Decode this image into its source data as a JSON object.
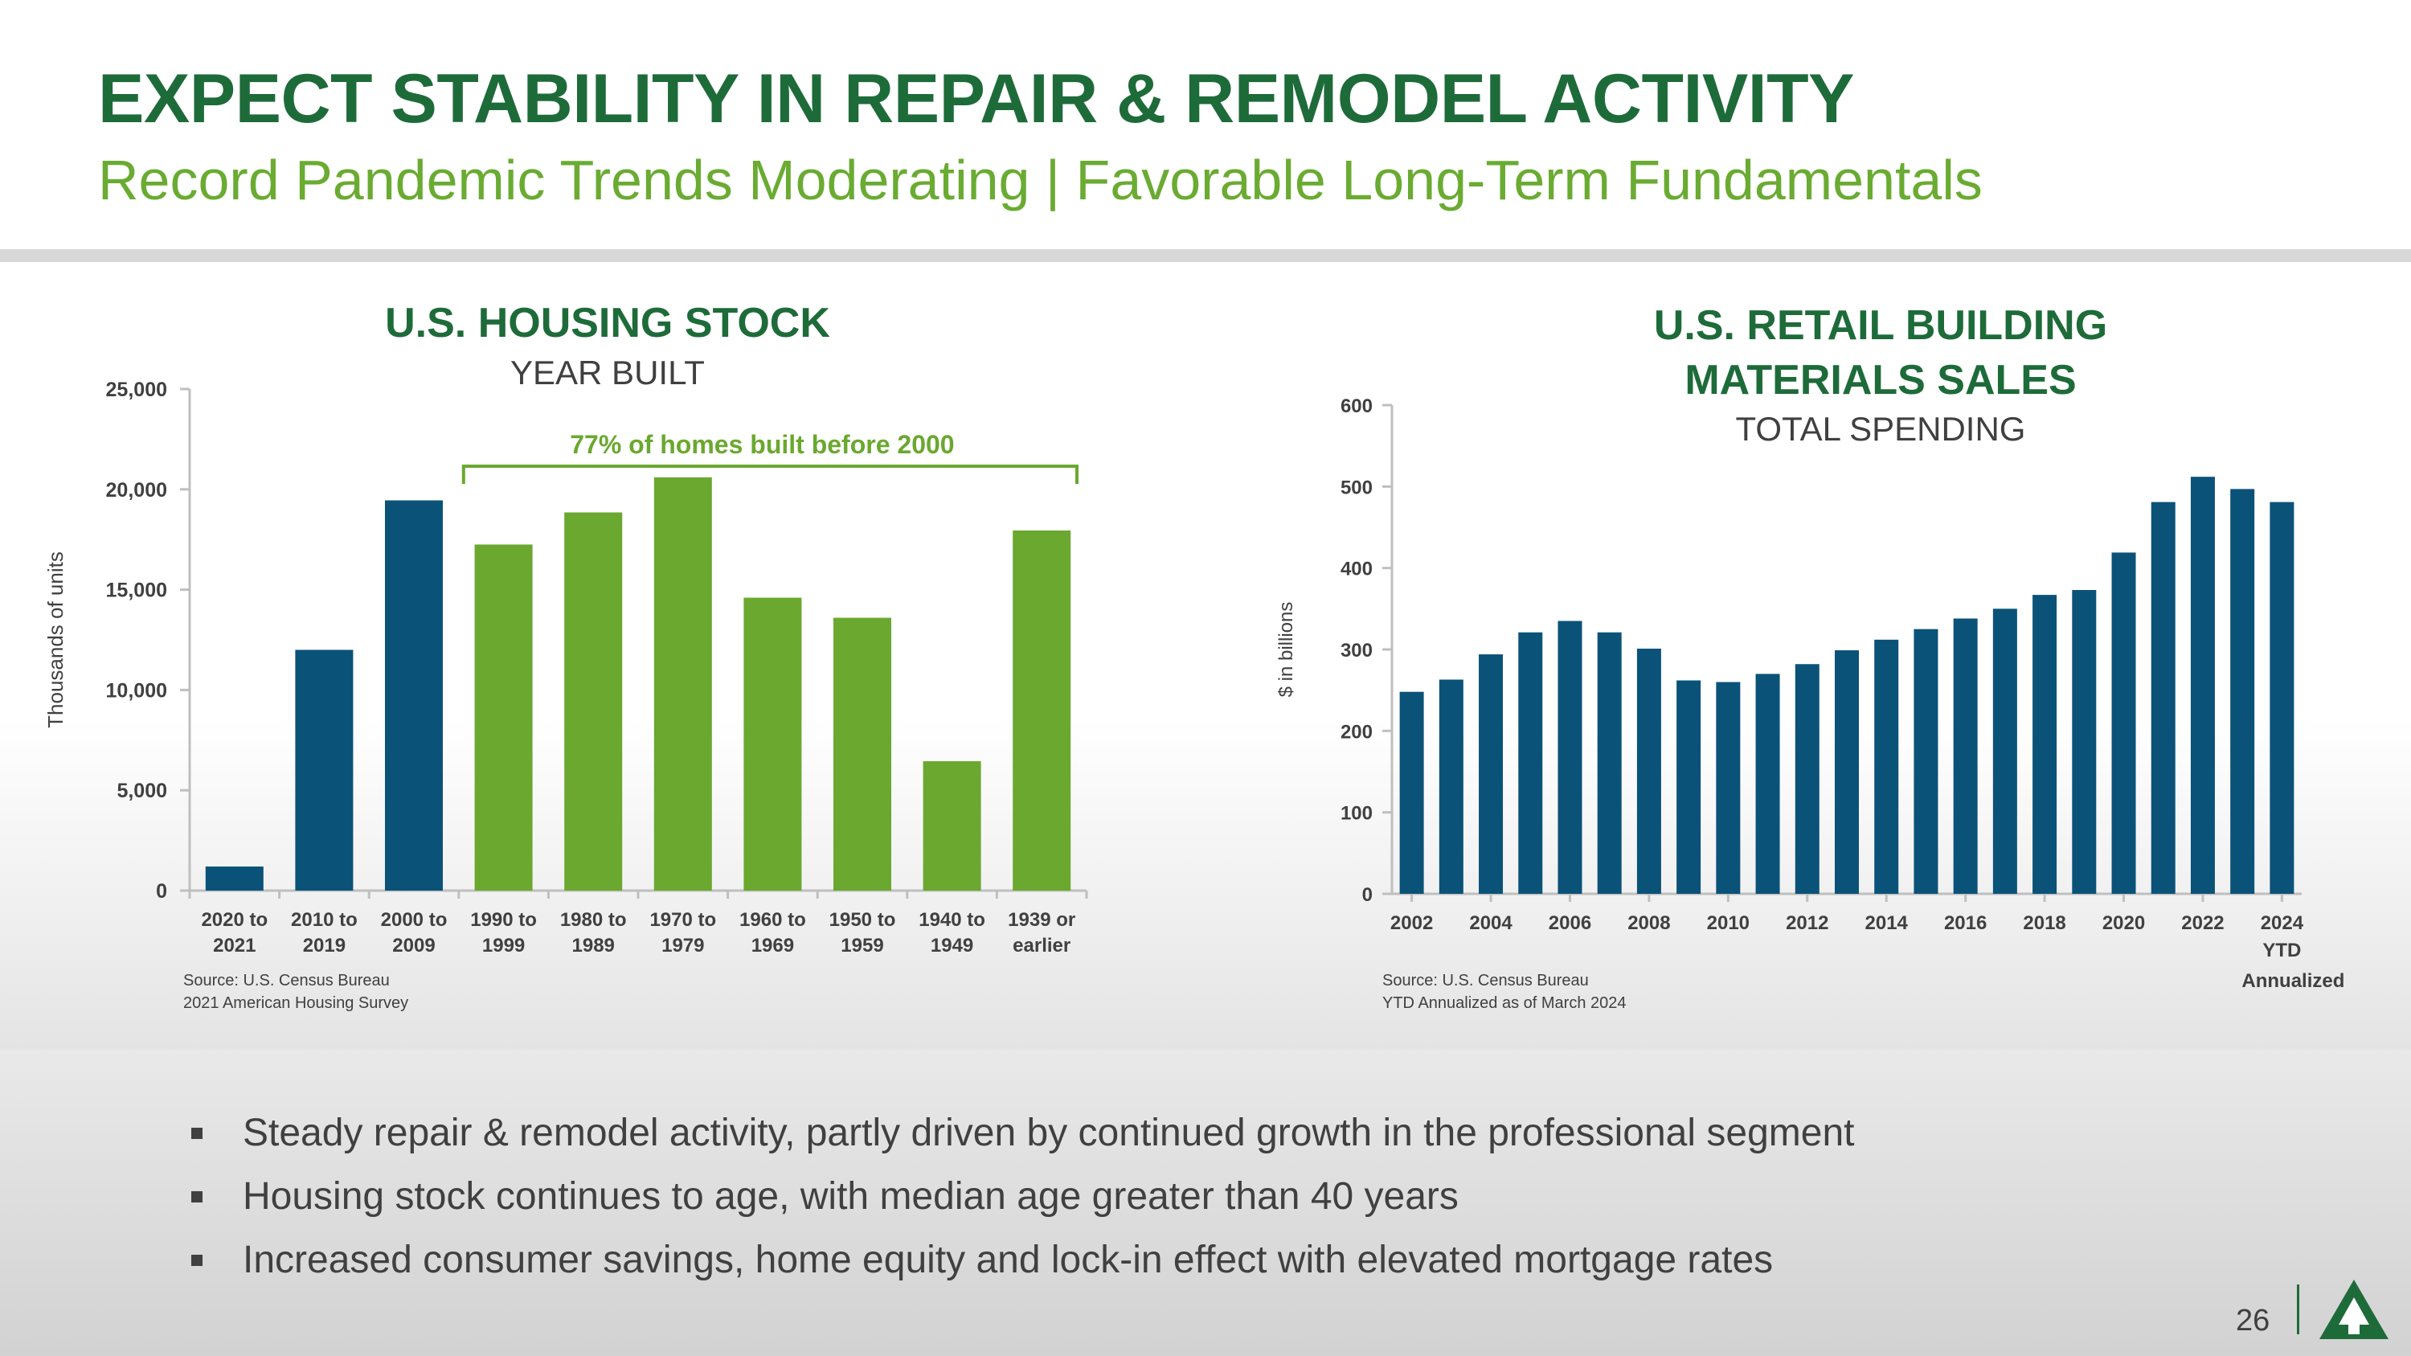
{
  "header": {
    "title": "EXPECT STABILITY IN REPAIR & REMODEL ACTIVITY",
    "subtitle": "Record Pandemic Trends Moderating | Favorable Long-Term Fundamentals"
  },
  "left_chart": {
    "title": "U.S. HOUSING STOCK",
    "subtitle": "YEAR BUILT",
    "annotation": "77% of homes built before 2000",
    "source_line1": "Source: U.S. Census Bureau",
    "source_line2": "2021 American Housing Survey"
  },
  "right_chart": {
    "title_line1": "U.S. RETAIL BUILDING",
    "title_line2": "MATERIALS SALES",
    "subtitle": "TOTAL SPENDING",
    "source_line1": "Source: U.S. Census Bureau",
    "source_line2": "YTD Annualized as of March 2024"
  },
  "chart_data": [
    {
      "type": "bar",
      "title": "U.S. HOUSING STOCK",
      "subtitle": "YEAR BUILT",
      "xlabel": "",
      "ylabel": "Thousands of units",
      "ylim": [
        0,
        25000
      ],
      "yticks": [
        0,
        5000,
        10000,
        15000,
        20000,
        25000
      ],
      "ytick_labels": [
        "0",
        "5,000",
        "10,000",
        "15,000",
        "20,000",
        "25,000"
      ],
      "categories": [
        [
          "2020 to",
          "2021"
        ],
        [
          "2010 to",
          "2019"
        ],
        [
          "2000 to",
          "2009"
        ],
        [
          "1990 to",
          "1999"
        ],
        [
          "1980 to",
          "1989"
        ],
        [
          "1970 to",
          "1979"
        ],
        [
          "1960 to",
          "1969"
        ],
        [
          "1950 to",
          "1959"
        ],
        [
          "1940 to",
          "1949"
        ],
        [
          "1939 or",
          "earlier"
        ]
      ],
      "values": [
        1200,
        12000,
        19450,
        17250,
        18850,
        20600,
        14600,
        13600,
        6450,
        17950
      ],
      "bar_colors": [
        "#0b5278",
        "#0b5278",
        "#0b5278",
        "#6aa82f",
        "#6aa82f",
        "#6aa82f",
        "#6aa82f",
        "#6aa82f",
        "#6aa82f",
        "#6aa82f"
      ],
      "annotation": "77% of homes built before 2000",
      "grid": false
    },
    {
      "type": "bar",
      "title": "U.S. RETAIL BUILDING MATERIALS SALES",
      "subtitle": "TOTAL SPENDING",
      "xlabel": "",
      "ylabel": "$ in billions",
      "ylim": [
        0,
        600
      ],
      "yticks": [
        0,
        100,
        200,
        300,
        400,
        500,
        600
      ],
      "ytick_labels": [
        "0",
        "100",
        "200",
        "300",
        "400",
        "500",
        "600"
      ],
      "categories": [
        "2002",
        "2003",
        "2004",
        "2005",
        "2006",
        "2007",
        "2008",
        "2009",
        "2010",
        "2011",
        "2012",
        "2013",
        "2014",
        "2015",
        "2016",
        "2017",
        "2018",
        "2019",
        "2020",
        "2021",
        "2022",
        "2023",
        "2024 YTD Annualized"
      ],
      "xtick_labels": [
        "2002",
        "2004",
        "2006",
        "2008",
        "2010",
        "2012",
        "2014",
        "2016",
        "2018",
        "2020",
        "2022",
        "2024"
      ],
      "last_tick_extra": [
        "YTD",
        "Annualized"
      ],
      "values": [
        248,
        263,
        294,
        321,
        335,
        321,
        301,
        262,
        260,
        270,
        282,
        299,
        312,
        325,
        338,
        350,
        367,
        373,
        419,
        481,
        512,
        497,
        481
      ],
      "bar_color": "#0b5278",
      "grid": false
    }
  ],
  "bullets": [
    "Steady repair & remodel activity, partly driven by continued growth in the professional segment",
    "Housing stock continues to age, with median age greater than 40 years",
    "Increased consumer savings, home equity and lock-in effect with elevated mortgage rates"
  ],
  "footer": {
    "page_number": "26",
    "logo_icon": "tree-logo-icon",
    "brand_color": "#1e6b3a"
  }
}
